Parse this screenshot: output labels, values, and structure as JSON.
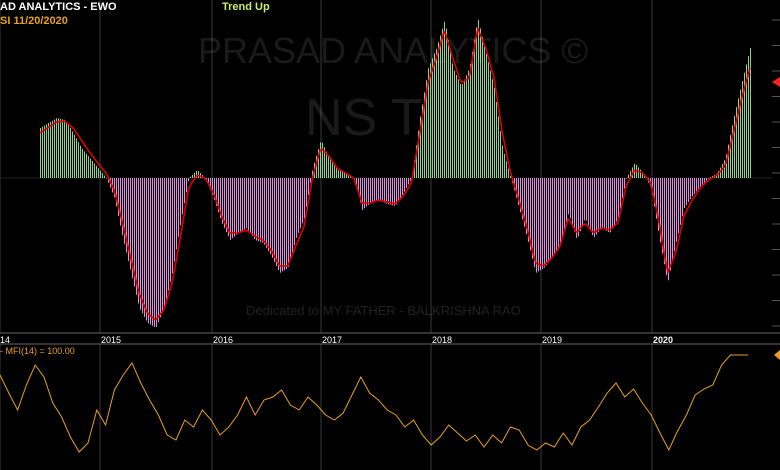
{
  "header": {
    "title": "AD ANALYTICS - EWO",
    "symbol_date": "SI   11/20/2020",
    "trend": "Trend Up",
    "mfi_label": "- MFI(14) = 100.00"
  },
  "watermark": {
    "line1": "PRASAD ANALYTICS ©",
    "line2": "NS         T",
    "line3": "Dedicated to MY FATHER - BALKRISHNA RAO"
  },
  "colors": {
    "positive_bar": "#8fd18f",
    "negative_bar": "#e08fe0",
    "signal_line": "#e00000",
    "mfi_line": "#e8a020",
    "year_grid": "#3a3a3a",
    "axis_text": "#ffffff",
    "marker": "#ff2020"
  },
  "chart_data": [
    {
      "type": "bar",
      "title": "EWO",
      "x_labels": [
        "14",
        "2015",
        "2016",
        "2017",
        "2018",
        "2019",
        "2020"
      ],
      "ylim": [
        -152,
        160
      ],
      "series": [
        {
          "values": [
            [
              0,
              50
            ],
            [
              2,
              60
            ],
            [
              3,
              58
            ],
            [
              4,
              45
            ],
            [
              5,
              30
            ],
            [
              6,
              20
            ],
            [
              7,
              10
            ],
            [
              8,
              0
            ],
            [
              9,
              -20
            ],
            [
              10,
              -60
            ],
            [
              11,
              -95
            ],
            [
              12,
              -130
            ],
            [
              13,
              -145
            ],
            [
              14,
              -150
            ],
            [
              15,
              -130
            ],
            [
              16,
              -95
            ],
            [
              17,
              -45
            ],
            [
              18,
              0
            ],
            [
              19,
              8
            ],
            [
              20,
              0
            ],
            [
              21,
              -20
            ],
            [
              22,
              -45
            ],
            [
              23,
              -62
            ],
            [
              24,
              -55
            ],
            [
              25,
              -50
            ],
            [
              26,
              -62
            ],
            [
              27,
              -65
            ],
            [
              28,
              -78
            ],
            [
              29,
              -95
            ],
            [
              30,
              -90
            ],
            [
              31,
              -60
            ],
            [
              32,
              -40
            ],
            [
              33,
              10
            ],
            [
              34,
              38
            ],
            [
              35,
              20
            ],
            [
              36,
              8
            ],
            [
              37,
              5
            ],
            [
              38,
              0
            ],
            [
              39,
              -32
            ],
            [
              40,
              -25
            ],
            [
              41,
              -22
            ],
            [
              42,
              -26
            ],
            [
              43,
              -28
            ],
            [
              44,
              -15
            ],
            [
              45,
              0
            ],
            [
              46,
              60
            ],
            [
              47,
              110
            ],
            [
              48,
              130
            ],
            [
              49,
              158
            ],
            [
              50,
              110
            ],
            [
              51,
              92
            ],
            [
              52,
              110
            ],
            [
              53,
              160
            ],
            [
              54,
              125
            ],
            [
              55,
              90
            ],
            [
              56,
              30
            ],
            [
              57,
              0
            ],
            [
              58,
              -30
            ],
            [
              59,
              -60
            ],
            [
              60,
              -95
            ],
            [
              61,
              -90
            ],
            [
              62,
              -80
            ],
            [
              63,
              -65
            ],
            [
              64,
              -35
            ],
            [
              65,
              -62
            ],
            [
              66,
              -40
            ],
            [
              67,
              -60
            ],
            [
              68,
              -50
            ],
            [
              69,
              -55
            ],
            [
              70,
              -40
            ],
            [
              71,
              0
            ],
            [
              72,
              15
            ],
            [
              73,
              5
            ],
            [
              74,
              -10
            ],
            [
              75,
              -60
            ],
            [
              76,
              -105
            ],
            [
              77,
              -65
            ],
            [
              78,
              -30
            ],
            [
              79,
              -18
            ],
            [
              80,
              -8
            ],
            [
              81,
              0
            ],
            [
              82,
              5
            ],
            [
              83,
              20
            ],
            [
              84,
              60
            ],
            [
              85,
              96
            ],
            [
              86,
              130
            ]
          ]
        },
        {
          "values": [
            [
              0,
              45
            ],
            [
              2,
              56
            ],
            [
              3,
              57
            ],
            [
              4,
              50
            ],
            [
              5,
              38
            ],
            [
              6,
              26
            ],
            [
              7,
              15
            ],
            [
              8,
              5
            ],
            [
              9,
              -12
            ],
            [
              10,
              -45
            ],
            [
              11,
              -80
            ],
            [
              12,
              -115
            ],
            [
              13,
              -135
            ],
            [
              14,
              -142
            ],
            [
              15,
              -132
            ],
            [
              16,
              -105
            ],
            [
              17,
              -60
            ],
            [
              18,
              -10
            ],
            [
              19,
              3
            ],
            [
              20,
              0
            ],
            [
              21,
              -15
            ],
            [
              22,
              -38
            ],
            [
              23,
              -55
            ],
            [
              24,
              -55
            ],
            [
              25,
              -52
            ],
            [
              26,
              -58
            ],
            [
              27,
              -62
            ],
            [
              28,
              -72
            ],
            [
              29,
              -88
            ],
            [
              30,
              -88
            ],
            [
              31,
              -68
            ],
            [
              32,
              -48
            ],
            [
              33,
              0
            ],
            [
              34,
              30
            ],
            [
              35,
              22
            ],
            [
              36,
              10
            ],
            [
              37,
              5
            ],
            [
              38,
              0
            ],
            [
              39,
              -25
            ],
            [
              40,
              -25
            ],
            [
              41,
              -22
            ],
            [
              42,
              -24
            ],
            [
              43,
              -26
            ],
            [
              44,
              -18
            ],
            [
              45,
              -5
            ],
            [
              46,
              45
            ],
            [
              47,
              95
            ],
            [
              48,
              120
            ],
            [
              49,
              148
            ],
            [
              50,
              120
            ],
            [
              51,
              95
            ],
            [
              52,
              100
            ],
            [
              53,
              150
            ],
            [
              54,
              130
            ],
            [
              55,
              100
            ],
            [
              56,
              45
            ],
            [
              57,
              5
            ],
            [
              58,
              -22
            ],
            [
              59,
              -50
            ],
            [
              60,
              -85
            ],
            [
              61,
              -88
            ],
            [
              62,
              -80
            ],
            [
              63,
              -68
            ],
            [
              64,
              -40
            ],
            [
              65,
              -55
            ],
            [
              66,
              -45
            ],
            [
              67,
              -55
            ],
            [
              68,
              -50
            ],
            [
              69,
              -52
            ],
            [
              70,
              -45
            ],
            [
              71,
              -8
            ],
            [
              72,
              8
            ],
            [
              73,
              5
            ],
            [
              74,
              -5
            ],
            [
              75,
              -45
            ],
            [
              76,
              -95
            ],
            [
              77,
              -75
            ],
            [
              78,
              -38
            ],
            [
              79,
              -22
            ],
            [
              80,
              -10
            ],
            [
              81,
              -2
            ],
            [
              82,
              3
            ],
            [
              83,
              12
            ],
            [
              84,
              45
            ],
            [
              85,
              80
            ],
            [
              86,
              110
            ]
          ]
        }
      ]
    },
    {
      "type": "line",
      "title": "MFI(14)",
      "ylim": [
        0,
        100
      ],
      "series": [
        {
          "values": [
            [
              0,
              80
            ],
            [
              1,
              62
            ],
            [
              2,
              45
            ],
            [
              3,
              70
            ],
            [
              4,
              90
            ],
            [
              5,
              78
            ],
            [
              6,
              52
            ],
            [
              7,
              38
            ],
            [
              8,
              18
            ],
            [
              9,
              3
            ],
            [
              10,
              12
            ],
            [
              11,
              45
            ],
            [
              12,
              30
            ],
            [
              13,
              65
            ],
            [
              14,
              80
            ],
            [
              15,
              92
            ],
            [
              16,
              72
            ],
            [
              17,
              55
            ],
            [
              18,
              40
            ],
            [
              19,
              20
            ],
            [
              20,
              15
            ],
            [
              21,
              35
            ],
            [
              22,
              28
            ],
            [
              23,
              45
            ],
            [
              24,
              35
            ],
            [
              25,
              20
            ],
            [
              26,
              28
            ],
            [
              27,
              40
            ],
            [
              28,
              58
            ],
            [
              29,
              40
            ],
            [
              30,
              55
            ],
            [
              31,
              58
            ],
            [
              32,
              65
            ],
            [
              33,
              50
            ],
            [
              34,
              45
            ],
            [
              35,
              58
            ],
            [
              36,
              50
            ],
            [
              37,
              40
            ],
            [
              38,
              35
            ],
            [
              39,
              42
            ],
            [
              40,
              60
            ],
            [
              41,
              78
            ],
            [
              42,
              62
            ],
            [
              43,
              55
            ],
            [
              44,
              45
            ],
            [
              45,
              40
            ],
            [
              46,
              28
            ],
            [
              47,
              35
            ],
            [
              48,
              20
            ],
            [
              49,
              10
            ],
            [
              50,
              18
            ],
            [
              51,
              30
            ],
            [
              52,
              22
            ],
            [
              53,
              14
            ],
            [
              54,
              20
            ],
            [
              55,
              8
            ],
            [
              56,
              20
            ],
            [
              57,
              12
            ],
            [
              58,
              28
            ],
            [
              59,
              25
            ],
            [
              60,
              10
            ],
            [
              61,
              5
            ],
            [
              62,
              12
            ],
            [
              63,
              8
            ],
            [
              64,
              22
            ],
            [
              65,
              10
            ],
            [
              66,
              28
            ],
            [
              67,
              35
            ],
            [
              68,
              48
            ],
            [
              69,
              62
            ],
            [
              70,
              72
            ],
            [
              71,
              58
            ],
            [
              72,
              66
            ],
            [
              73,
              52
            ],
            [
              74,
              40
            ],
            [
              75,
              22
            ],
            [
              76,
              5
            ],
            [
              77,
              24
            ],
            [
              78,
              40
            ],
            [
              79,
              60
            ],
            [
              80,
              66
            ],
            [
              81,
              70
            ],
            [
              82,
              90
            ],
            [
              83,
              100
            ],
            [
              84,
              100
            ],
            [
              85,
              100
            ]
          ]
        }
      ]
    }
  ]
}
